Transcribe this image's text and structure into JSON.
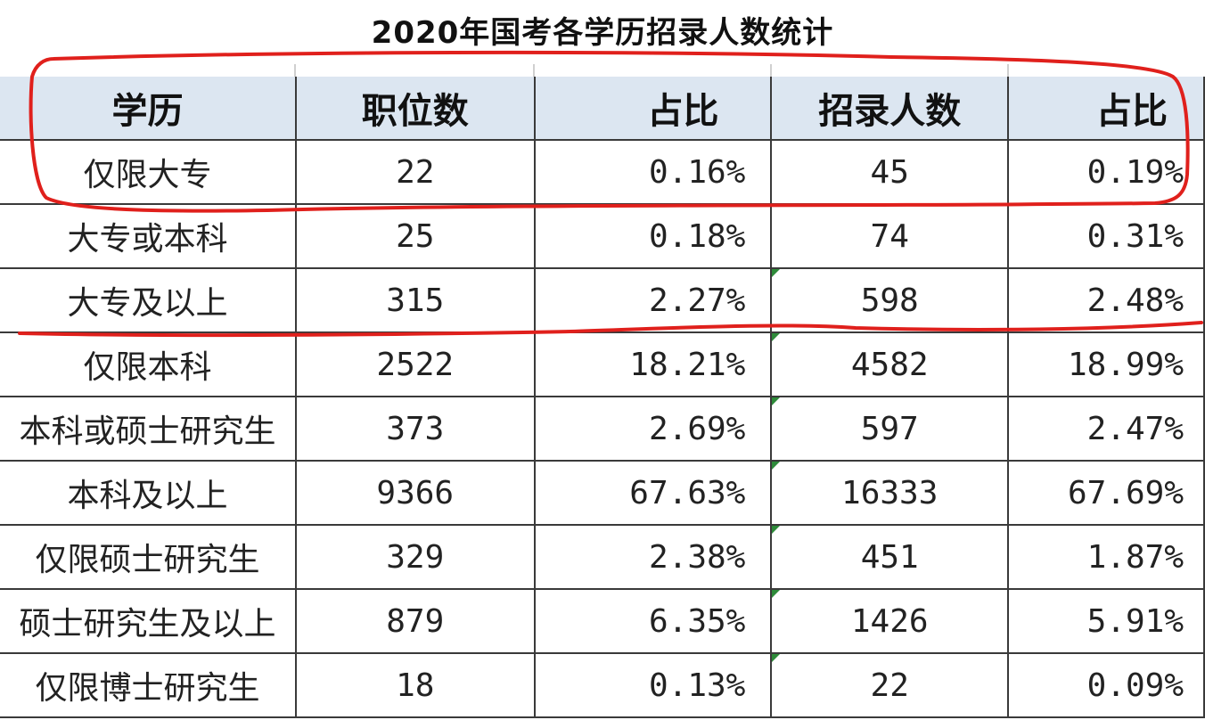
{
  "title": "2020年国考各学历招录人数统计",
  "table": {
    "headers": [
      "学历",
      "职位数",
      "占比",
      "招录人数",
      "占比"
    ],
    "rows": [
      {
        "education": "仅限大专",
        "positions": "22",
        "positions_share": "0.16%",
        "recruits": "45",
        "recruits_share": "0.19%"
      },
      {
        "education": "大专或本科",
        "positions": "25",
        "positions_share": "0.18%",
        "recruits": "74",
        "recruits_share": "0.31%"
      },
      {
        "education": "大专及以上",
        "positions": "315",
        "positions_share": "2.27%",
        "recruits": "598",
        "recruits_share": "2.48%"
      },
      {
        "education": "仅限本科",
        "positions": "2522",
        "positions_share": "18.21%",
        "recruits": "4582",
        "recruits_share": "18.99%"
      },
      {
        "education": "本科或硕士研究生",
        "positions": "373",
        "positions_share": "2.69%",
        "recruits": "597",
        "recruits_share": "2.47%"
      },
      {
        "education": "本科及以上",
        "positions": "9366",
        "positions_share": "67.63%",
        "recruits": "16333",
        "recruits_share": "67.69%"
      },
      {
        "education": "仅限硕士研究生",
        "positions": "329",
        "positions_share": "2.38%",
        "recruits": "451",
        "recruits_share": "1.87%"
      },
      {
        "education": "硕士研究生及以上",
        "positions": "879",
        "positions_share": "6.35%",
        "recruits": "1426",
        "recruits_share": "5.91%"
      },
      {
        "education": "仅限博士研究生",
        "positions": "18",
        "positions_share": "0.13%",
        "recruits": "22",
        "recruits_share": "0.09%"
      }
    ]
  },
  "colors": {
    "header_fill": "#dce6f1",
    "grid_line": "#3a3a3a",
    "annotation_red": "#e0201c",
    "cell_marker_green": "#2e8b3a"
  }
}
